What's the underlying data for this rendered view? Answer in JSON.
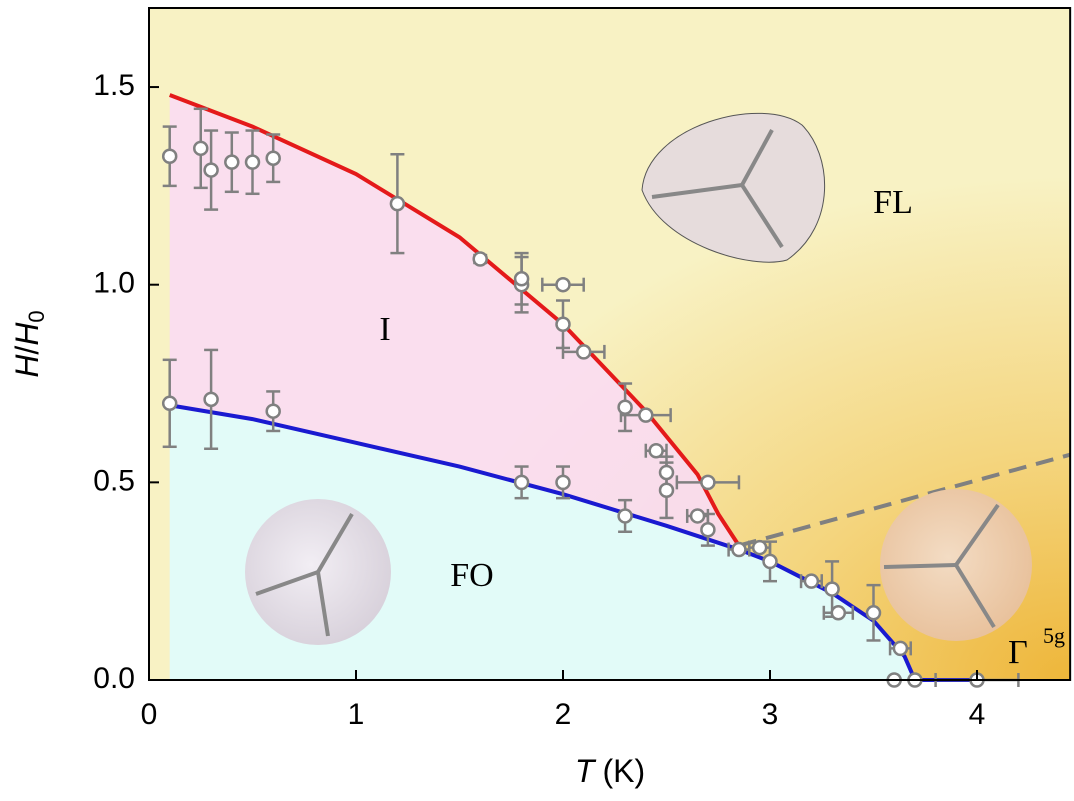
{
  "chart_data": {
    "type": "scatter",
    "xlim": [
      0,
      4.45
    ],
    "ylim": [
      0,
      1.7
    ],
    "xticks": [
      0,
      1,
      2,
      3,
      4
    ],
    "yticks": [
      {
        "value": 0,
        "label": "0.0"
      },
      0.5,
      {
        "value": 1,
        "label": "1.0"
      },
      1.5
    ],
    "x_label": [
      "T",
      "(K)"
    ],
    "y_label": [
      "H",
      "/",
      "H",
      "0"
    ],
    "annotations": [
      "I",
      "FO",
      "FL",
      "Γ",
      "5g"
    ],
    "series": [
      {
        "type": "scatter",
        "color": "#808080",
        "x": [
          0.1,
          0.25,
          0.3,
          0.4,
          0.5,
          0.6,
          1.2,
          1.6,
          1.8,
          1.8,
          2.0,
          2.0,
          2.1,
          2.3,
          2.4,
          2.45,
          2.5,
          2.5,
          2.7,
          2.65,
          0.1,
          0.3,
          0.6,
          1.8,
          2.0,
          2.3,
          2.7,
          2.85,
          2.95,
          3.0,
          3.2,
          3.3,
          3.33,
          3.5,
          3.63,
          3.6,
          3.7,
          4.0
        ],
        "values": [
          1.325,
          1.345,
          1.29,
          1.31,
          1.31,
          1.32,
          1.205,
          1.065,
          1.0,
          1.015,
          1.0,
          0.9,
          0.83,
          0.69,
          0.67,
          0.58,
          0.525,
          0.48,
          0.5,
          0.415,
          0.7,
          0.71,
          0.68,
          0.5,
          0.5,
          0.415,
          0.38,
          0.33,
          0.335,
          0.3,
          0.25,
          0.23,
          0.17,
          0.17,
          0.08,
          0,
          0,
          0
        ],
        "yerr": [
          0.075,
          0.1,
          0.1,
          0.075,
          0.08,
          0.06,
          0.125,
          0.01,
          0.07,
          0.065,
          null,
          0.06,
          null,
          0.06,
          null,
          null,
          0.04,
          0.07,
          null,
          null,
          0.11,
          0.125,
          0.05,
          0.04,
          0.04,
          0.04,
          0.04,
          null,
          null,
          0.05,
          null,
          0.07,
          null,
          0.07,
          null,
          null,
          null,
          null
        ],
        "xerr": [
          null,
          null,
          null,
          null,
          null,
          null,
          null,
          null,
          null,
          null,
          0.1,
          null,
          0.1,
          null,
          0.12,
          0.05,
          null,
          null,
          0.15,
          0.05,
          null,
          null,
          null,
          null,
          null,
          null,
          null,
          0.05,
          0.05,
          null,
          0.05,
          null,
          0.07,
          null,
          0.05,
          null,
          null,
          0.2
        ]
      },
      {
        "type": "line",
        "color": "#e41a1a",
        "x": [
          0.1,
          0.5,
          1.0,
          1.5,
          2.0,
          2.4,
          2.65,
          2.75,
          2.85
        ],
        "values": [
          1.48,
          1.4,
          1.28,
          1.12,
          0.9,
          0.68,
          0.52,
          0.42,
          0.34
        ]
      },
      {
        "type": "line",
        "color": "#1a1ad0",
        "x": [
          0.1,
          0.5,
          1.0,
          1.5,
          2.0,
          2.5,
          2.85,
          3.0,
          3.3,
          3.5,
          3.65,
          3.7,
          4.0
        ],
        "values": [
          0.695,
          0.66,
          0.6,
          0.54,
          0.47,
          0.39,
          0.33,
          0.3,
          0.22,
          0.15,
          0.06,
          0,
          0
        ]
      },
      {
        "type": "line",
        "color": "#808080",
        "dashed": true,
        "x": [
          2.85,
          4.45
        ],
        "values": [
          0.34,
          0.57
        ]
      }
    ]
  }
}
